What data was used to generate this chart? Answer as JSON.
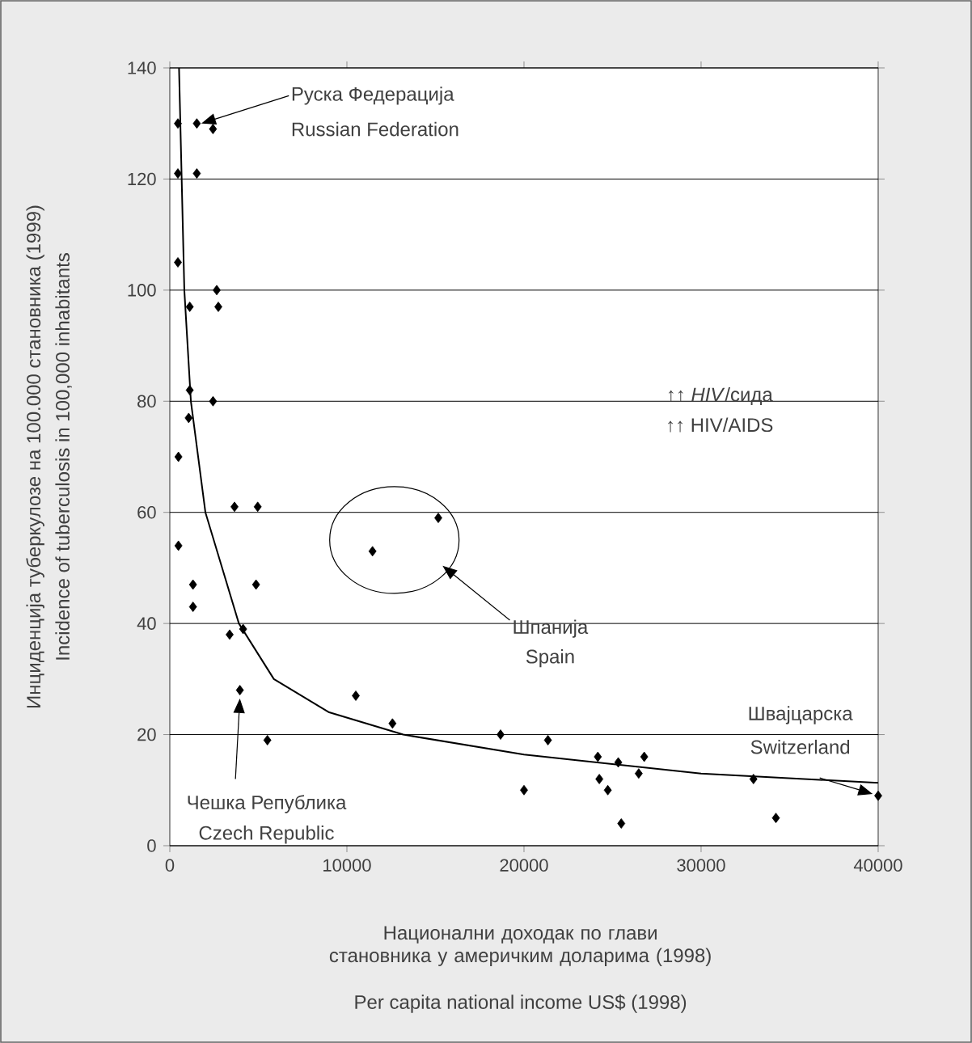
{
  "chart_data": {
    "type": "scatter",
    "xlabel": "Национални доходак по глави становника у америчким доларима (1998)",
    "ylabel": "Инциденција туберкулозе на 100.000 становника (1999)",
    "xlim": [
      0,
      40000
    ],
    "ylim": [
      0,
      140
    ],
    "xticks": [
      0,
      10000,
      20000,
      30000,
      40000
    ],
    "yticks": [
      0,
      20,
      40,
      60,
      80,
      100,
      120,
      140
    ],
    "grid": "y",
    "marker": "diamond",
    "series": [
      {
        "color": "#000000",
        "x": [
          457,
          1525,
          2438,
          457,
          1525,
          457,
          2650,
          1125,
          2740,
          1125,
          2440,
          1065,
          487,
          3653,
          4962,
          15160,
          11446,
          487,
          1309,
          4870,
          1309,
          3379,
          4140,
          10502,
          12572,
          3957,
          5510,
          18676,
          20000,
          21352,
          24169,
          24254,
          24732,
          25324,
          25493,
          26479,
          26789,
          32958,
          34225,
          40000
        ],
        "values": [
          130,
          130,
          129,
          121,
          121,
          105,
          100,
          97,
          97,
          82,
          80,
          77,
          70,
          61,
          61,
          59,
          53,
          54,
          47,
          47,
          43,
          38,
          39,
          27,
          22,
          28,
          19,
          20,
          10,
          19,
          16,
          12,
          10,
          15,
          4,
          13,
          16,
          12,
          5,
          9
        ]
      },
      {
        "type": "line",
        "color": "#000000",
        "marker": "none",
        "x": [
          520,
          820,
          1190,
          2010,
          3900,
          5875,
          9000,
          13180,
          20000,
          30000,
          40000
        ],
        "values": [
          140,
          100,
          80,
          60,
          40,
          30,
          24,
          20,
          16.4,
          13,
          11.3
        ]
      }
    ],
    "annotations": [
      {
        "text": "Руска Федерација",
        "x": 1775,
        "y": 130
      },
      "Russian Federation",
      {
        "text": "Чешка Република",
        "x": 3957,
        "y": 26.5
      },
      "Czech Republic",
      "Шпанија",
      "Spain",
      "Швајцарска",
      {
        "text": "Switzerland",
        "x": 39700,
        "y": 9.3
      },
      "↑↑ *HIV*/сида",
      "↑↑ HIV/AIDS",
      "Incidence of tuberculosis in 100,000 inhabitants",
      "Per capita national income US$ (1998)"
    ]
  }
}
